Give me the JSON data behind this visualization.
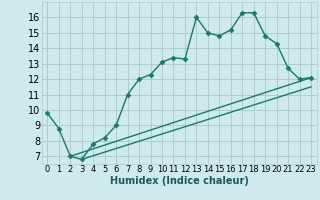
{
  "background_color": "#ceeaea",
  "grid_color": "#b0cccc",
  "line_color": "#1a7a6a",
  "marker": "D",
  "markersize": 2.5,
  "linewidth": 1.0,
  "xlabel": "Humidex (Indice chaleur)",
  "xlabel_fontsize": 7,
  "ytick_fontsize": 7,
  "xtick_fontsize": 6,
  "ylim": [
    6.5,
    17.0
  ],
  "xlim": [
    -0.5,
    23.5
  ],
  "yticks": [
    7,
    8,
    9,
    10,
    11,
    12,
    13,
    14,
    15,
    16
  ],
  "xticks": [
    0,
    1,
    2,
    3,
    4,
    5,
    6,
    7,
    8,
    9,
    10,
    11,
    12,
    13,
    14,
    15,
    16,
    17,
    18,
    19,
    20,
    21,
    22,
    23
  ],
  "series1": [
    [
      0,
      9.8
    ],
    [
      1,
      8.8
    ],
    [
      2,
      7.0
    ],
    [
      3,
      6.8
    ],
    [
      4,
      7.8
    ],
    [
      5,
      8.2
    ],
    [
      6,
      9.0
    ],
    [
      7,
      11.0
    ],
    [
      8,
      12.0
    ],
    [
      9,
      12.3
    ],
    [
      10,
      13.1
    ],
    [
      11,
      13.4
    ],
    [
      12,
      13.3
    ],
    [
      13,
      16.0
    ],
    [
      14,
      15.0
    ],
    [
      15,
      14.8
    ],
    [
      16,
      15.2
    ],
    [
      17,
      16.3
    ],
    [
      18,
      16.3
    ],
    [
      19,
      14.8
    ],
    [
      20,
      14.3
    ],
    [
      21,
      12.7
    ],
    [
      22,
      12.0
    ],
    [
      23,
      12.1
    ]
  ],
  "series2": [
    [
      2,
      7.0
    ],
    [
      23,
      12.1
    ]
  ],
  "series3": [
    [
      3,
      6.8
    ],
    [
      23,
      11.5
    ]
  ]
}
